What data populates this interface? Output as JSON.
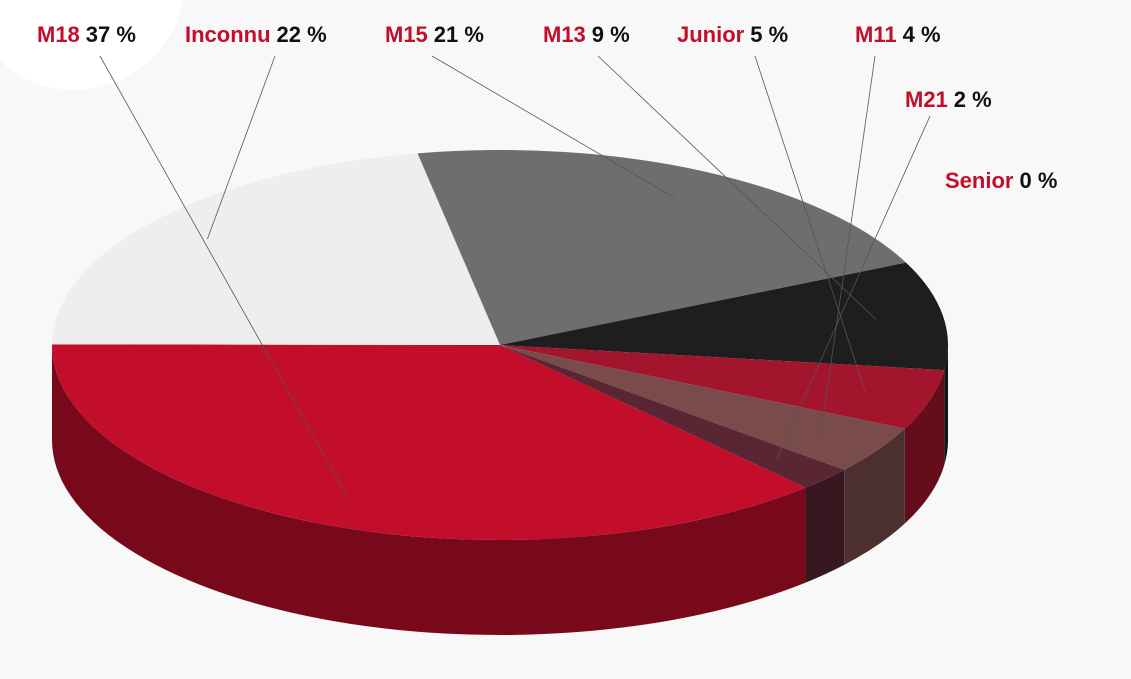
{
  "chart_data": {
    "type": "pie",
    "categories": [
      "M18",
      "Inconnu",
      "M15",
      "M13",
      "Junior",
      "M11",
      "M21",
      "Senior"
    ],
    "values": [
      37,
      22,
      21,
      9,
      5,
      4,
      2,
      0
    ],
    "value_labels": [
      "37 %",
      "22 %",
      "21 %",
      "9 %",
      "5 %",
      "4 %",
      "2 %",
      "0 %"
    ],
    "colors": [
      "#c20e2b",
      "#eeeeee",
      "#6e6e6e",
      "#1e1e1e",
      "#a3152c",
      "#7a4b4b",
      "#5b2633",
      "#bdbdbd"
    ],
    "label_color": "#c20e2b"
  }
}
